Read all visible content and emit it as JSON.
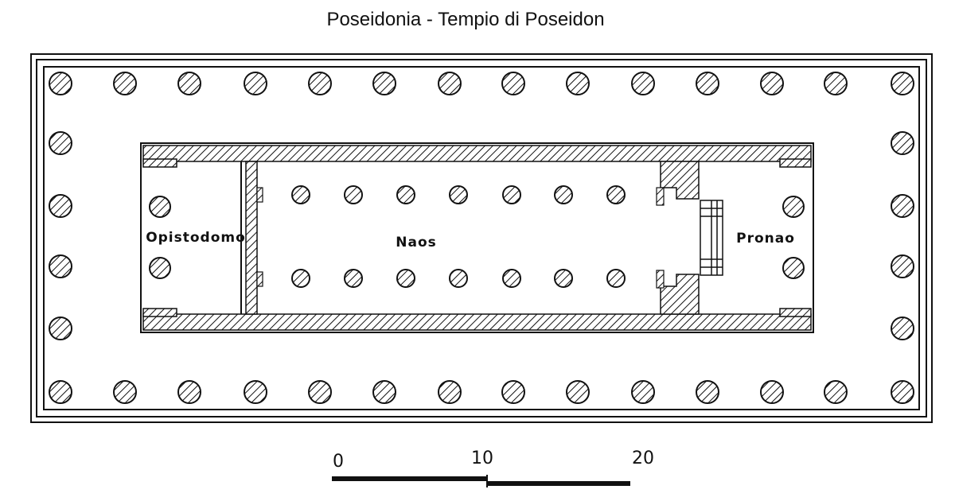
{
  "title": "Poseidonia - Tempio di Poseidon",
  "rooms": {
    "opisthodomos": "Opistodomo",
    "naos": "Naos",
    "pronaos": "Pronao"
  },
  "scale_bar": {
    "labels": [
      "0",
      "10",
      "20"
    ]
  },
  "colors": {
    "line": "#111111",
    "background": "#ffffff"
  }
}
